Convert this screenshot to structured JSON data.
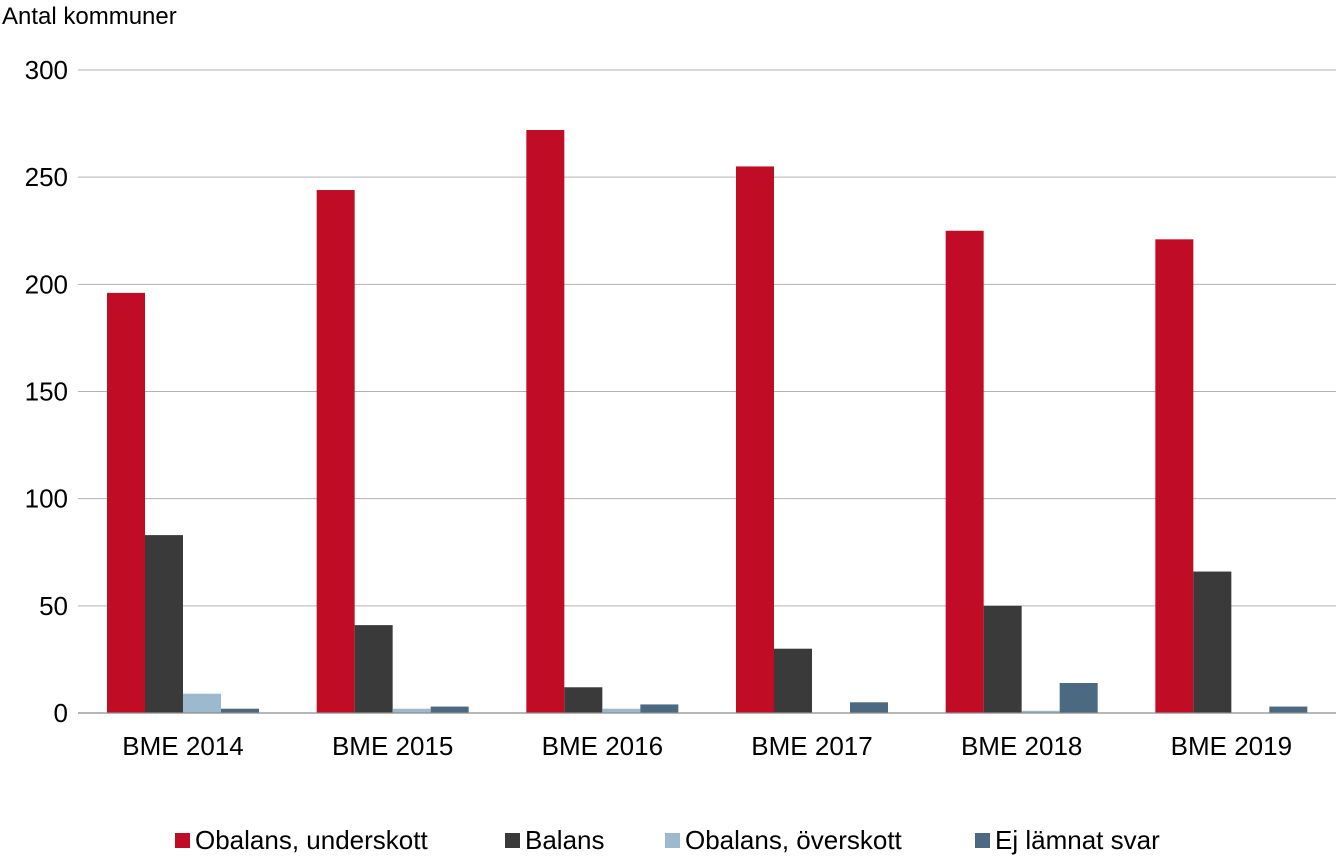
{
  "chart_data": {
    "type": "bar",
    "title": "",
    "xlabel": "",
    "ylabel": "Antal kommuner",
    "ylim": [
      0,
      300
    ],
    "yticks": [
      0,
      50,
      100,
      150,
      200,
      250,
      300
    ],
    "grid": true,
    "legend_position": "bottom",
    "categories": [
      "BME 2014",
      "BME 2015",
      "BME 2016",
      "BME 2017",
      "BME 2018",
      "BME 2019"
    ],
    "series": [
      {
        "name": "Obalans, underskott",
        "color": "#c00c24",
        "values": [
          196,
          244,
          272,
          255,
          225,
          221
        ]
      },
      {
        "name": "Balans",
        "color": "#3a3a3a",
        "values": [
          83,
          41,
          12,
          30,
          50,
          66
        ]
      },
      {
        "name": "Obalans, överskott",
        "color": "#9db9ce",
        "values": [
          9,
          2,
          2,
          0,
          1,
          0
        ]
      },
      {
        "name": "Ej lämnat svar",
        "color": "#4b6a82",
        "values": [
          2,
          3,
          4,
          5,
          14,
          3
        ]
      }
    ]
  }
}
